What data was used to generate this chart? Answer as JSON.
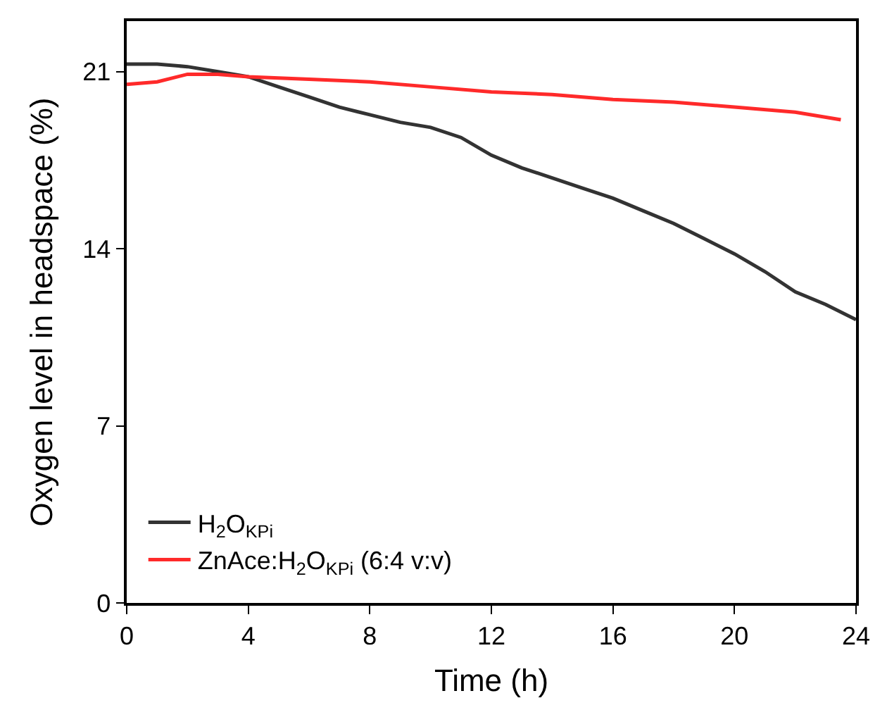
{
  "chart_data": {
    "type": "line",
    "xlabel": "Time (h)",
    "ylabel": "Oxygen level in headspace (%)",
    "xlim": [
      0,
      24
    ],
    "xticks": [
      0,
      4,
      8,
      12,
      16,
      20,
      24
    ],
    "ylim": [
      0,
      23
    ],
    "yticks": [
      0,
      7,
      14,
      21
    ],
    "legend": "bottom left",
    "marker": "none",
    "line_style": "solid",
    "series": [
      {
        "name": "H$_{2}$O$_{KPi}$",
        "color": "#333333",
        "x": [
          0,
          1,
          2,
          3,
          4,
          5,
          6,
          7,
          8,
          9,
          10,
          11,
          12,
          13,
          14,
          15,
          16,
          17,
          18,
          19,
          20,
          21,
          22,
          23,
          24
        ],
        "values": [
          21.3,
          21.3,
          21.2,
          21.0,
          20.8,
          20.4,
          20.0,
          19.6,
          19.3,
          19.0,
          18.8,
          18.4,
          17.7,
          17.2,
          16.8,
          16.4,
          16.0,
          15.5,
          15.0,
          14.4,
          13.8,
          13.1,
          12.3,
          11.8,
          11.2
        ]
      },
      {
        "name": "ZnAce:H$_{2}$O$_{KPi}$ (6:4 v:v)",
        "color": "#ff2a2a",
        "x": [
          0,
          1,
          2,
          3,
          4,
          6,
          8,
          10,
          12,
          14,
          16,
          18,
          20,
          22,
          23.5
        ],
        "values": [
          20.5,
          20.6,
          20.9,
          20.9,
          20.8,
          20.7,
          20.6,
          20.4,
          20.2,
          20.1,
          19.9,
          19.8,
          19.6,
          19.4,
          19.1
        ]
      }
    ]
  }
}
